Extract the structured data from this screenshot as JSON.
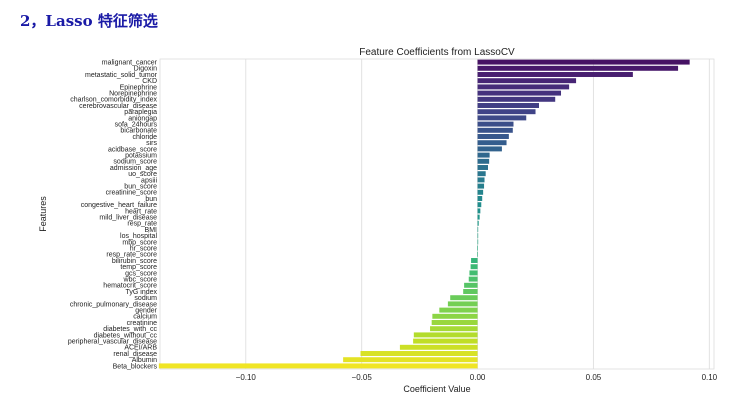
{
  "heading": "2，Lasso 特征筛选",
  "chart_data": {
    "type": "bar",
    "orientation": "horizontal",
    "title": "Feature Coefficients from LassoCV",
    "xlabel": "Coefficient Value",
    "ylabel": "Features",
    "xlim": [
      -0.137,
      0.102
    ],
    "xticks": [
      -0.1,
      -0.05,
      0.0,
      0.05,
      0.1
    ],
    "xtick_labels": [
      "−0.10",
      "−0.05",
      "0.00",
      "0.05",
      "0.10"
    ],
    "grid": true,
    "colormap": "viridis",
    "categories": [
      "malignant_cancer",
      "Digoxin",
      "metastatic_solid_tumor",
      "CKD",
      "Epinephrine",
      "Norepinephrine",
      "charlson_comorbidity_index",
      "cerebrovascular_disease",
      "paraplegia",
      "aniongap",
      "sofa_24hours",
      "bicarbonate",
      "chloride",
      "sirs",
      "acidbase_score",
      "potassium",
      "sodium_score",
      "admission_age",
      "uo_score",
      "apsiii",
      "bun_score",
      "creatinine_score",
      "bun",
      "congestive_heart_failure",
      "heart_rate",
      "mild_liver_disease",
      "resp_rate",
      "BMI",
      "los_hospital",
      "mbp_score",
      "hr_score",
      "resp_rate_score",
      "bilirubin_score",
      "temp_score",
      "gcs_score",
      "wbc_score",
      "hematocrit_score",
      "TyG index",
      "sodium",
      "chronic_pulmonary_disease",
      "gender",
      "calcium",
      "creatinine",
      "diabetes_with_cc",
      "diabetes_without_cc",
      "peripheral_vascular_disease",
      "ACEI/ARB",
      "renal_disease",
      "Albumin",
      "Beta_blockers"
    ],
    "values": [
      0.0915,
      0.0865,
      0.067,
      0.0425,
      0.0395,
      0.036,
      0.0335,
      0.0265,
      0.025,
      0.021,
      0.0155,
      0.0152,
      0.0135,
      0.0125,
      0.0105,
      0.0052,
      0.005,
      0.0045,
      0.0035,
      0.003,
      0.0028,
      0.0024,
      0.002,
      0.0016,
      0.0012,
      0.0009,
      0.0005,
      0.0002,
      0.0001,
      0.0,
      -0.0001,
      -0.0002,
      -0.0028,
      -0.003,
      -0.0035,
      -0.0038,
      -0.0058,
      -0.0062,
      -0.0118,
      -0.0128,
      -0.0165,
      -0.0195,
      -0.0198,
      -0.0205,
      -0.0275,
      -0.0278,
      -0.0335,
      -0.0505,
      -0.058,
      -0.1375
    ]
  }
}
